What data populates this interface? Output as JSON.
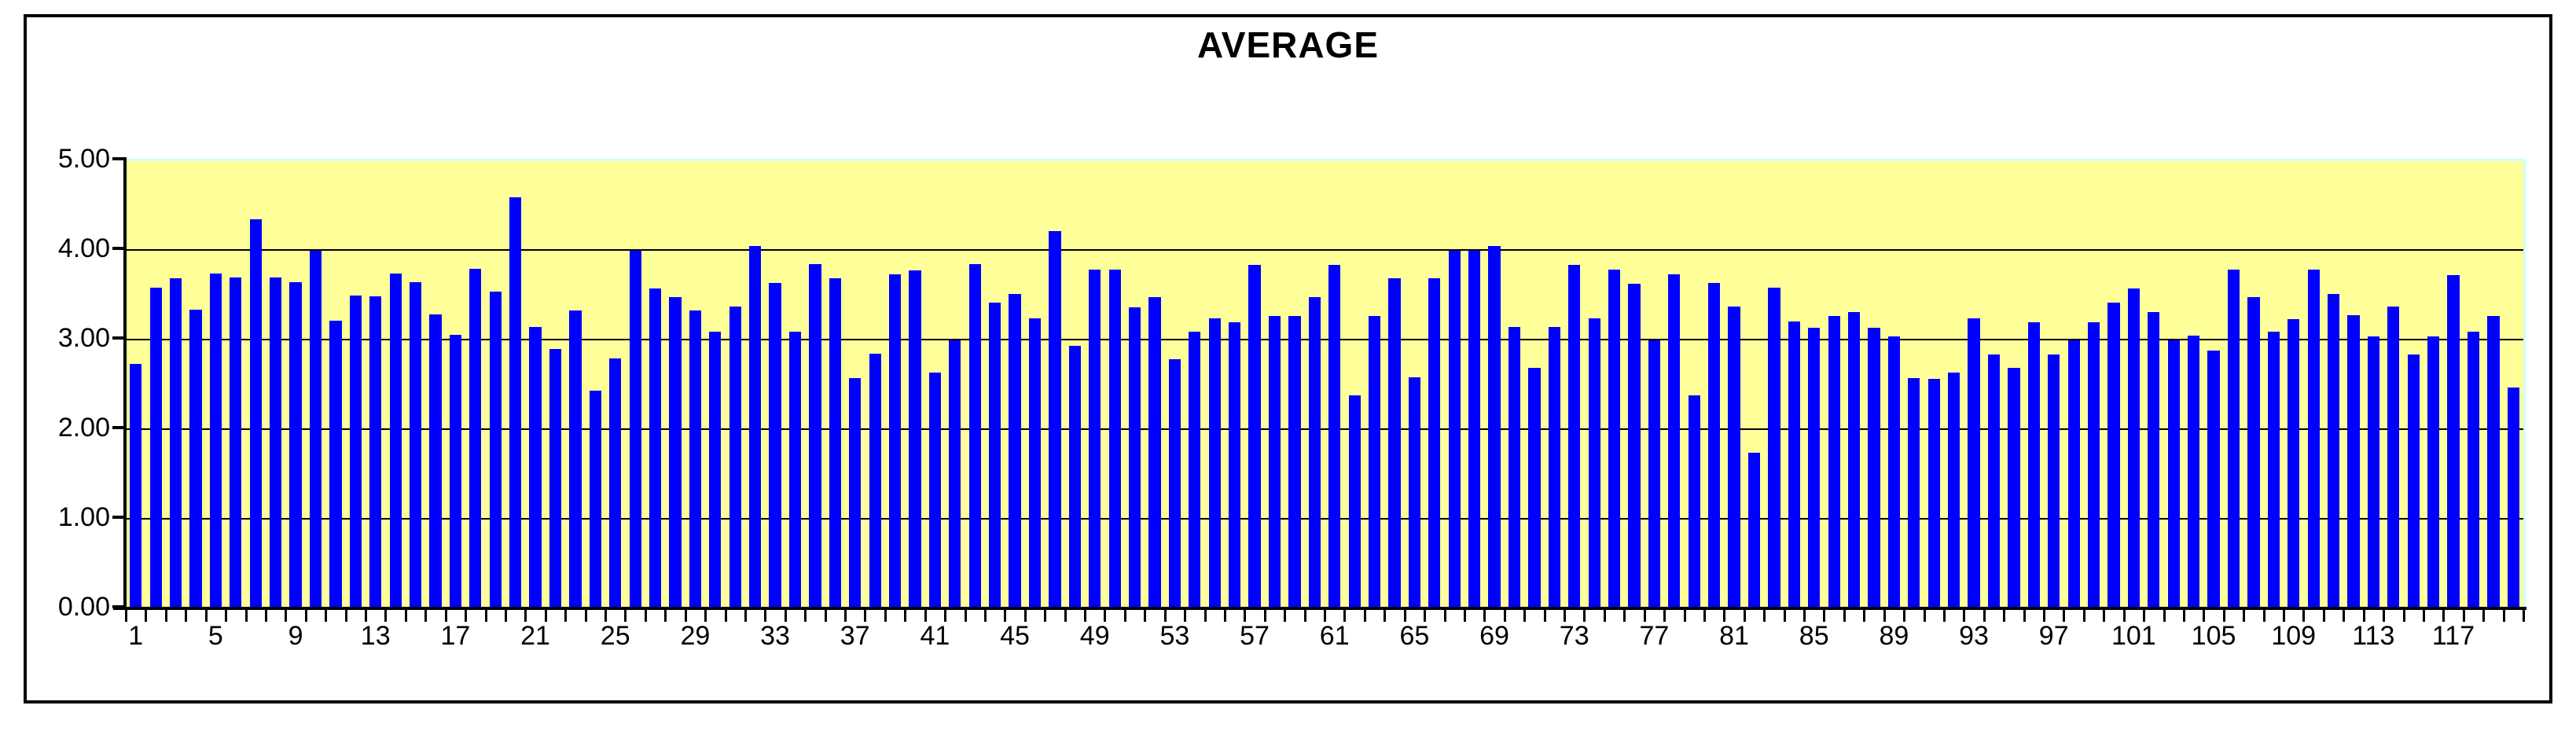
{
  "window": {
    "background": "#FFFFFF",
    "border_color": "#000000"
  },
  "chart_data": {
    "type": "bar",
    "title": "AVERAGE",
    "xlabel": "",
    "ylabel": "",
    "ylim": [
      0,
      5
    ],
    "grid": true,
    "legend": null,
    "plot_bg": "#FFFF99",
    "plot_edge": "#CCFFFF",
    "bar_color": "#0000FF",
    "gridline_color": "#000000",
    "y_tick_labels": [
      "5.00",
      "4.00",
      "3.00",
      "2.00",
      "1.00",
      "0.00"
    ],
    "x_tick_step": 4,
    "x_tick_labels": [
      "1",
      "5",
      "9",
      "13",
      "17",
      "21",
      "25",
      "29",
      "33",
      "37",
      "41",
      "45",
      "49",
      "53",
      "57",
      "61",
      "65",
      "69",
      "73",
      "77",
      "81",
      "85",
      "89",
      "93",
      "97",
      "101",
      "105",
      "109",
      "113",
      "117"
    ],
    "num_bars": 120,
    "categories": [
      1,
      2,
      3,
      4,
      5,
      6,
      7,
      8,
      9,
      10,
      11,
      12,
      13,
      14,
      15,
      16,
      17,
      18,
      19,
      20,
      21,
      22,
      23,
      24,
      25,
      26,
      27,
      28,
      29,
      30,
      31,
      32,
      33,
      34,
      35,
      36,
      37,
      38,
      39,
      40,
      41,
      42,
      43,
      44,
      45,
      46,
      47,
      48,
      49,
      50,
      51,
      52,
      53,
      54,
      55,
      56,
      57,
      58,
      59,
      60,
      61,
      62,
      63,
      64,
      65,
      66,
      67,
      68,
      69,
      70,
      71,
      72,
      73,
      74,
      75,
      76,
      77,
      78,
      79,
      80,
      81,
      82,
      83,
      84,
      85,
      86,
      87,
      88,
      89,
      90,
      91,
      92,
      93,
      94,
      95,
      96,
      97,
      98,
      99,
      100,
      101,
      102,
      103,
      104,
      105,
      106,
      107,
      108,
      109,
      110,
      111,
      112,
      113,
      114,
      115,
      116,
      117,
      118,
      119,
      120
    ],
    "values": [
      2.74,
      3.59,
      3.69,
      3.34,
      3.75,
      3.7,
      4.35,
      3.7,
      3.65,
      4.0,
      3.22,
      3.5,
      3.49,
      3.75,
      3.65,
      3.29,
      3.06,
      3.8,
      3.54,
      4.6,
      3.15,
      2.9,
      3.33,
      2.44,
      2.8,
      4.0,
      3.58,
      3.48,
      3.33,
      3.1,
      3.38,
      4.05,
      3.64,
      3.1,
      3.85,
      3.69,
      2.58,
      2.85,
      3.74,
      3.78,
      2.64,
      3.0,
      3.85,
      3.42,
      3.52,
      3.25,
      4.22,
      2.94,
      3.79,
      3.79,
      3.37,
      3.48,
      2.79,
      3.1,
      3.25,
      3.2,
      3.84,
      3.27,
      3.27,
      3.48,
      3.84,
      2.39,
      3.27,
      3.69,
      2.59,
      3.69,
      4.0,
      4.0,
      4.05,
      3.15,
      2.69,
      3.15,
      3.84,
      3.25,
      3.79,
      3.63,
      3.0,
      3.74,
      2.39,
      3.64,
      3.38,
      1.75,
      3.59,
      3.21,
      3.14,
      3.27,
      3.32,
      3.14,
      3.04,
      2.58,
      2.57,
      2.64,
      3.25,
      2.84,
      2.69,
      3.2,
      2.84,
      3.0,
      3.2,
      3.42,
      3.58,
      3.32,
      3.0,
      3.05,
      2.89,
      3.79,
      3.48,
      3.1,
      3.24,
      3.79,
      3.52,
      3.28,
      3.04,
      3.38,
      2.84,
      3.04,
      3.73,
      3.1,
      3.27,
      2.47
    ]
  }
}
